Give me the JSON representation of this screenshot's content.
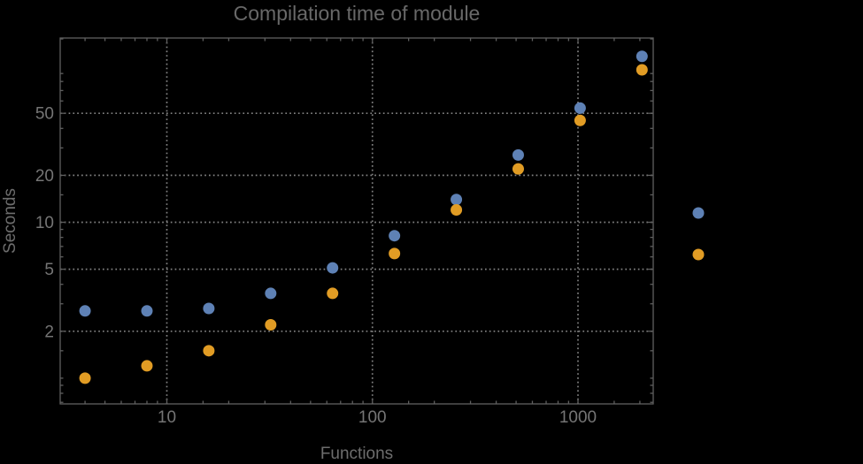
{
  "chart_data": {
    "type": "scatter",
    "title": "Compilation time of module",
    "xlabel": "Functions",
    "ylabel": "Seconds",
    "x_scale": "log",
    "y_scale": "log",
    "x_range": [
      3.0,
      2320
    ],
    "y_range": [
      0.68,
      152
    ],
    "grid": "dotted gridlines at labeled ticks only",
    "legend_position": "right-of-plot, markers only (no visible label text)",
    "x": [
      4,
      8,
      16,
      32,
      64,
      128,
      256,
      512,
      1024,
      2048
    ],
    "series": [
      {
        "name": "blue",
        "color": "#5E81B5",
        "values": [
          2.7,
          2.7,
          2.8,
          3.5,
          5.1,
          8.2,
          14,
          27,
          54,
          116
        ]
      },
      {
        "name": "orange",
        "color": "#E19C24",
        "values": [
          1.0,
          1.2,
          1.5,
          2.2,
          3.5,
          6.3,
          12,
          22,
          45,
          95
        ]
      }
    ],
    "x_tick_labels": [
      "10",
      "100",
      "1000"
    ],
    "x_tick_values": [
      10,
      100,
      1000
    ],
    "x_minor_ticks": [
      4,
      5,
      6,
      7,
      8,
      9,
      15,
      20,
      30,
      40,
      50,
      60,
      70,
      80,
      90,
      150,
      200,
      300,
      400,
      500,
      600,
      700,
      800,
      900,
      1500,
      2000
    ],
    "y_tick_labels": [
      "2",
      "5",
      "10",
      "20",
      "50"
    ],
    "y_tick_values": [
      2,
      5,
      10,
      20,
      50
    ],
    "y_minor_ticks": [
      0.7,
      0.8,
      0.9,
      1,
      1.5,
      3,
      4,
      6,
      7,
      8,
      9,
      15,
      30,
      40,
      60,
      70,
      80,
      90,
      150
    ],
    "legend_markers": [
      {
        "series": "blue",
        "color": "#5E81B5"
      },
      {
        "series": "orange",
        "color": "#E19C24"
      }
    ]
  },
  "colors": {
    "background": "#000000",
    "frame": "#5f5f5f",
    "grid": "#828282",
    "title_text": "#686868",
    "tick_text": "#757575"
  }
}
